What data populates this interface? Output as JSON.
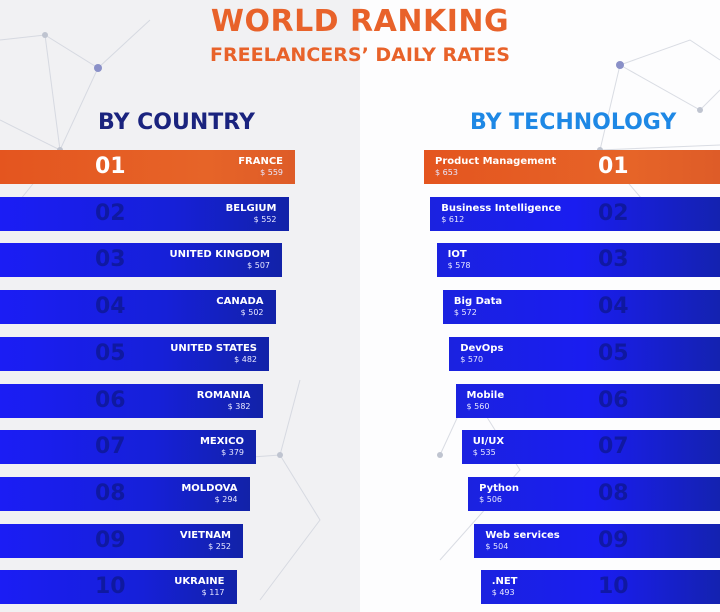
{
  "header": {
    "title": "WORLD RANKING",
    "subtitle": "FREELANCERS’ DAILY RATES"
  },
  "colors": {
    "accent": "#e8622a",
    "bar_blue": "#1b1df5",
    "country_heading": "#1a237e",
    "technology_heading": "#1e88e5"
  },
  "chart_data": [
    {
      "type": "bar",
      "title": "BY COUNTRY",
      "orientation": "horizontal",
      "ranks": [
        "01",
        "02",
        "03",
        "04",
        "05",
        "06",
        "07",
        "08",
        "09",
        "10"
      ],
      "categories": [
        "FRANCE",
        "BELGIUM",
        "UNITED KINGDOM",
        "CANADA",
        "UNITED STATES",
        "ROMANIA",
        "MEXICO",
        "MOLDOVA",
        "VIETNAM",
        "UKRAINE"
      ],
      "values": [
        559,
        552,
        507,
        502,
        482,
        382,
        379,
        294,
        252,
        117
      ],
      "value_labels": [
        "$ 559",
        "$ 552",
        "$ 507",
        "$ 502",
        "$ 482",
        "$ 382",
        "$ 379",
        "$ 294",
        "$ 252",
        "$ 117"
      ],
      "unit": "$ per day"
    },
    {
      "type": "bar",
      "title": "BY TECHNOLOGY",
      "orientation": "horizontal",
      "ranks": [
        "01",
        "02",
        "03",
        "04",
        "05",
        "06",
        "07",
        "08",
        "09",
        "10"
      ],
      "categories": [
        "Product Management",
        "Business Intelligence",
        "IOT",
        "Big Data",
        "DevOps",
        "Mobile",
        "UI/UX",
        "Python",
        "Web services",
        ".NET"
      ],
      "values": [
        653,
        612,
        578,
        572,
        570,
        560,
        535,
        506,
        504,
        493
      ],
      "value_labels": [
        "$ 653",
        "$ 612",
        "$ 578",
        "$ 572",
        "$ 570",
        "$ 560",
        "$ 535",
        "$ 506",
        "$ 504",
        "$ 493"
      ],
      "unit": "$ per day"
    }
  ]
}
